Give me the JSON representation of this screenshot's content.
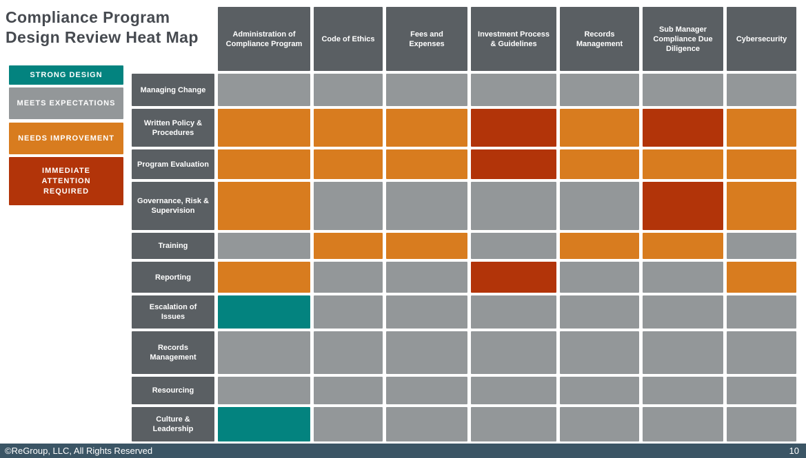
{
  "title": {
    "line1": "Compliance Program",
    "line2": "Design Review Heat Map"
  },
  "legend": {
    "items": [
      {
        "label": "STRONG DESIGN",
        "key": "strong"
      },
      {
        "label": "MEETS EXPECTATIONS",
        "key": "meets"
      },
      {
        "label": "NEEDS IMPROVEMENT",
        "key": "needs"
      },
      {
        "label": "IMMEDIATE ATTENTION REQUIRED",
        "key": "immediate"
      }
    ]
  },
  "colors": {
    "strong": "#03837F",
    "meets": "#939799",
    "needs": "#D87C1F",
    "immediate": "#B23409",
    "header_bg": "#5A5F63",
    "title_text": "#464A50",
    "footer_bg": "#3B5565"
  },
  "chart_data": {
    "type": "heatmap",
    "title": "Compliance Program Design Review Heat Map",
    "legend_position": "left",
    "columns": [
      "Administration of Compliance Program",
      "Code of Ethics",
      "Fees and Expenses",
      "Investment Process & Guidelines",
      "Records Management",
      "Sub Manager Compliance Due Diligence",
      "Cybersecurity"
    ],
    "rows": [
      "Managing Change",
      "Written Policy & Procedures",
      "Program Evaluation",
      "Governance, Risk & Supervision",
      "Training",
      "Reporting",
      "Escalation of Issues",
      "Records Management",
      "Resourcing",
      "Culture & Leadership"
    ],
    "scale": [
      "strong",
      "meets",
      "needs",
      "immediate"
    ],
    "scale_labels": {
      "strong": "STRONG DESIGN",
      "meets": "MEETS EXPECTATIONS",
      "needs": "NEEDS IMPROVEMENT",
      "immediate": "IMMEDIATE ATTENTION REQUIRED"
    },
    "values": [
      [
        "meets",
        "meets",
        "meets",
        "meets",
        "meets",
        "meets",
        "meets"
      ],
      [
        "needs",
        "needs",
        "needs",
        "immediate",
        "needs",
        "immediate",
        "needs"
      ],
      [
        "needs",
        "needs",
        "needs",
        "immediate",
        "needs",
        "needs",
        "needs"
      ],
      [
        "needs",
        "meets",
        "meets",
        "meets",
        "meets",
        "immediate",
        "needs"
      ],
      [
        "meets",
        "needs",
        "needs",
        "meets",
        "needs",
        "needs",
        "meets"
      ],
      [
        "needs",
        "meets",
        "meets",
        "immediate",
        "meets",
        "meets",
        "needs"
      ],
      [
        "strong",
        "meets",
        "meets",
        "meets",
        "meets",
        "meets",
        "meets"
      ],
      [
        "meets",
        "meets",
        "meets",
        "meets",
        "meets",
        "meets",
        "meets"
      ],
      [
        "meets",
        "meets",
        "meets",
        "meets",
        "meets",
        "meets",
        "meets"
      ],
      [
        "strong",
        "meets",
        "meets",
        "meets",
        "meets",
        "meets",
        "meets"
      ]
    ]
  },
  "footer": {
    "copyright": "©ReGroup, LLC, All Rights Reserved",
    "page_number": "10"
  }
}
